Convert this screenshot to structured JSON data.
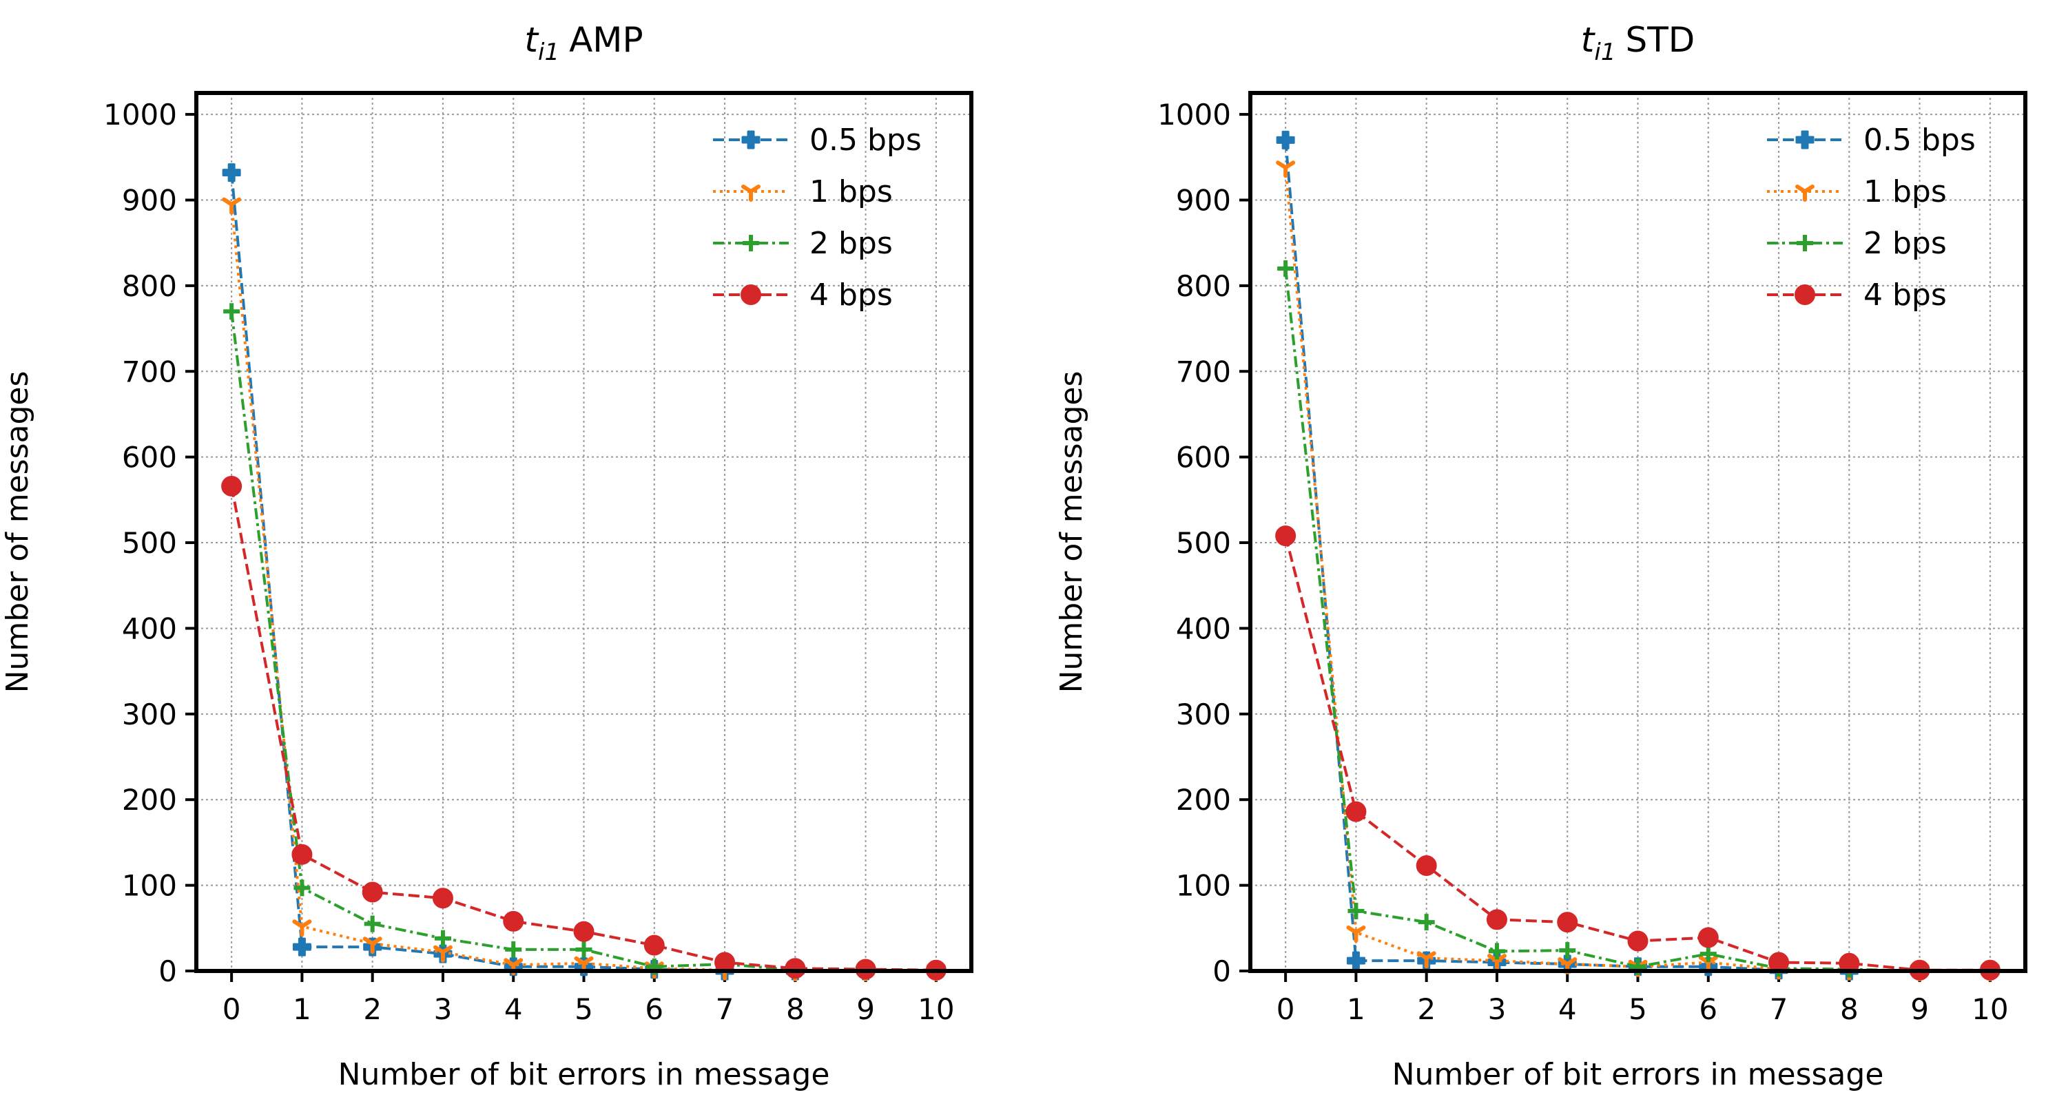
{
  "chart_data": [
    {
      "type": "line",
      "title": "AMP",
      "title_var": "t",
      "title_sub": "i1",
      "xlabel": "Number of bit errors in message",
      "ylabel": "Number of messages",
      "x": [
        0,
        1,
        2,
        3,
        4,
        5,
        6,
        7,
        8,
        9,
        10
      ],
      "xlim": [
        -0.5,
        10.5
      ],
      "ylim": [
        0,
        1025
      ],
      "yticks": [
        0,
        100,
        200,
        300,
        400,
        500,
        600,
        700,
        800,
        900,
        1000
      ],
      "grid": true,
      "legend_position": "top-right",
      "series": [
        {
          "name": "0.5 bps",
          "color": "#1f77b4",
          "linestyle": "dashed",
          "marker": "cross-circle",
          "values": [
            932,
            28,
            28,
            20,
            5,
            5,
            2,
            0,
            0,
            0,
            0
          ]
        },
        {
          "name": "1 bps",
          "color": "#ff7f0e",
          "linestyle": "dotted",
          "marker": "tri-down",
          "values": [
            895,
            52,
            32,
            22,
            7,
            9,
            3,
            1,
            0,
            0,
            0
          ]
        },
        {
          "name": "2 bps",
          "color": "#2ca02c",
          "linestyle": "dashdot",
          "marker": "plus",
          "values": [
            770,
            97,
            55,
            38,
            25,
            25,
            5,
            8,
            1,
            0,
            0
          ]
        },
        {
          "name": "4 bps",
          "color": "#d62728",
          "linestyle": "dashed",
          "marker": "circle",
          "values": [
            566,
            136,
            92,
            85,
            58,
            46,
            30,
            10,
            3,
            2,
            1
          ]
        }
      ]
    },
    {
      "type": "line",
      "title": "STD",
      "title_var": "t",
      "title_sub": "i1",
      "xlabel": "Number of bit errors in message",
      "ylabel": "Number of messages",
      "x": [
        0,
        1,
        2,
        3,
        4,
        5,
        6,
        7,
        8,
        9,
        10
      ],
      "xlim": [
        -0.5,
        10.5
      ],
      "ylim": [
        0,
        1025
      ],
      "yticks": [
        0,
        100,
        200,
        300,
        400,
        500,
        600,
        700,
        800,
        900,
        1000
      ],
      "grid": true,
      "legend_position": "top-right",
      "series": [
        {
          "name": "0.5 bps",
          "color": "#1f77b4",
          "linestyle": "dashed",
          "marker": "cross-circle",
          "values": [
            970,
            12,
            12,
            10,
            8,
            5,
            5,
            1,
            0,
            0,
            0
          ]
        },
        {
          "name": "1 bps",
          "color": "#ff7f0e",
          "linestyle": "dotted",
          "marker": "tri-down",
          "values": [
            938,
            45,
            15,
            12,
            8,
            5,
            10,
            2,
            1,
            0,
            0
          ]
        },
        {
          "name": "2 bps",
          "color": "#2ca02c",
          "linestyle": "dashdot",
          "marker": "plus",
          "values": [
            820,
            70,
            57,
            23,
            24,
            5,
            20,
            3,
            2,
            0,
            0
          ]
        },
        {
          "name": "4 bps",
          "color": "#d62728",
          "linestyle": "dashed",
          "marker": "circle",
          "values": [
            508,
            186,
            123,
            60,
            57,
            35,
            39,
            10,
            9,
            1,
            1
          ]
        }
      ]
    }
  ]
}
